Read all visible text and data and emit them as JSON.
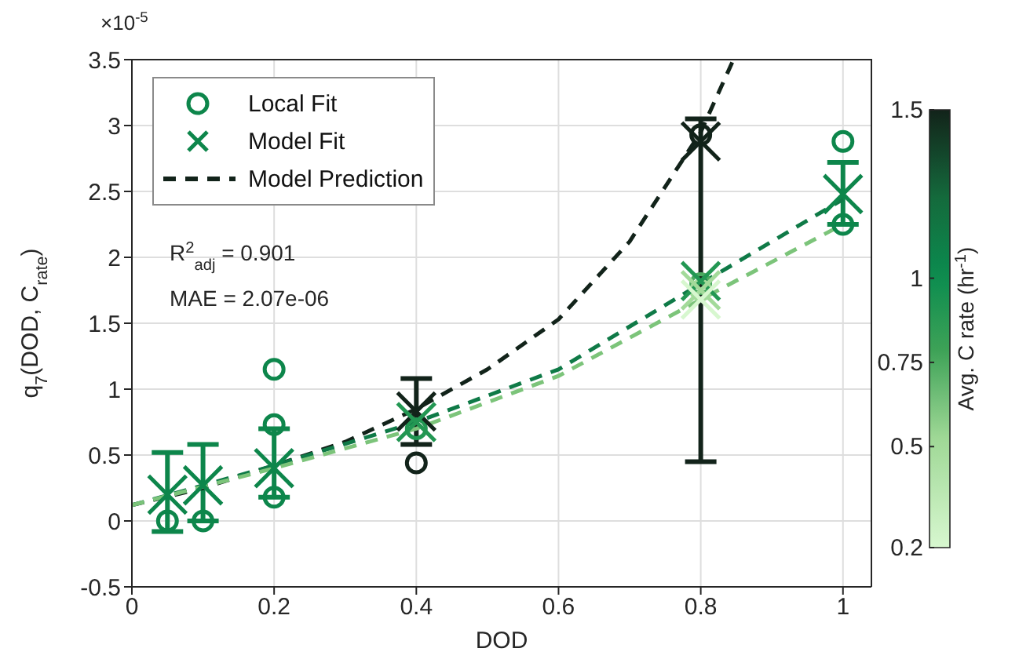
{
  "chart_data": {
    "type": "scatter",
    "xlabel": "DOD",
    "ylabel": "q$_{7}$(DOD, C$_{rate}$)",
    "clabel": "Avg. C rate (hr$^{-1}$)",
    "xlim": [
      0,
      1.04
    ],
    "xticks": [
      0,
      0.2,
      0.4,
      0.6,
      0.8,
      1
    ],
    "ylim": [
      -0.5,
      3.5
    ],
    "yticks": [
      -0.5,
      0,
      0.5,
      1,
      1.5,
      2,
      2.5,
      3,
      3.5
    ],
    "clim": [
      0.2,
      1.5
    ],
    "cticks": [
      0.2,
      0.5,
      0.75,
      1,
      1.5
    ],
    "grid": true,
    "legend": "top left",
    "annotations": [
      "×10$^{-5}$",
      "R$^{2}$$_{adj}$ = 0.901",
      "MAE = 2.07e-06"
    ],
    "series": [
      {
        "name": "Local Fit",
        "type": "scatter",
        "marker": "circle",
        "colors": [
          "#0d864b",
          "#0d864b",
          "#0d864b",
          "#0d864b",
          "#0d864b",
          "#12231a",
          "#239753",
          "#12231a",
          "#4ba95f",
          "#a3da9a",
          "#0d864b",
          "#0d864b"
        ],
        "x": [
          0.05,
          0.1,
          0.2,
          0.2,
          0.2,
          0.4,
          0.4,
          0.8,
          0.8,
          0.8,
          1,
          1
        ],
        "values": [
          0,
          0,
          1.15,
          0.73,
          0.18,
          0.44,
          0.7,
          2.93,
          1.8,
          1.75,
          2.88,
          2.25
        ],
        "cvalues": [
          1.05,
          1.05,
          1.05,
          1.05,
          1.05,
          1.5,
          0.9,
          1.5,
          0.75,
          0.5,
          1.05,
          1.05
        ]
      },
      {
        "name": "Model Fit",
        "type": "scatter",
        "marker": "cross",
        "colors": [
          "#0d864b",
          "#0d864b",
          "#0d864b",
          "#12231a",
          "#239753",
          "#12231a",
          "#239753",
          "#a3da9a",
          "#d7f7cf",
          "#0d864b"
        ],
        "x": [
          0.05,
          0.1,
          0.2,
          0.4,
          0.4,
          0.8,
          0.8,
          0.8,
          0.8,
          1
        ],
        "values": [
          0.2,
          0.27,
          0.4,
          0.83,
          0.75,
          2.88,
          1.82,
          1.75,
          1.68,
          2.48
        ],
        "cvalues": [
          1.05,
          1.05,
          1.05,
          1.5,
          0.9,
          1.5,
          0.9,
          0.5,
          0.2,
          1.05
        ],
        "errors": [
          [
            -0.08,
            0.52
          ],
          [
            0,
            0.58
          ],
          [
            0.18,
            0.7
          ],
          [
            0.58,
            1.08
          ],
          null,
          [
            0.45,
            3.05
          ],
          null,
          null,
          null,
          [
            2.25,
            2.72
          ]
        ]
      },
      {
        "name": "Model Prediction",
        "type": "line",
        "line_style": "dashed",
        "color": "#12231a",
        "x": [
          0,
          0.1,
          0.2,
          0.3,
          0.4,
          0.5,
          0.6,
          0.7,
          0.8,
          0.846
        ],
        "values": [
          0.12,
          0.25,
          0.42,
          0.6,
          0.85,
          1.15,
          1.53,
          2.12,
          2.95,
          3.5
        ]
      },
      {
        "type": "line",
        "line_style": "dashed",
        "color": "#0f7a47",
        "x": [
          0,
          0.2,
          0.4,
          0.6,
          0.8,
          1
        ],
        "values": [
          0.12,
          0.42,
          0.75,
          1.15,
          1.8,
          2.44
        ]
      },
      {
        "type": "line",
        "line_style": "dashed",
        "color": "#7cc47a",
        "x": [
          0,
          0.2,
          0.4,
          0.6,
          0.8,
          1
        ],
        "values": [
          0.12,
          0.4,
          0.7,
          1.1,
          1.68,
          2.25
        ]
      }
    ]
  }
}
